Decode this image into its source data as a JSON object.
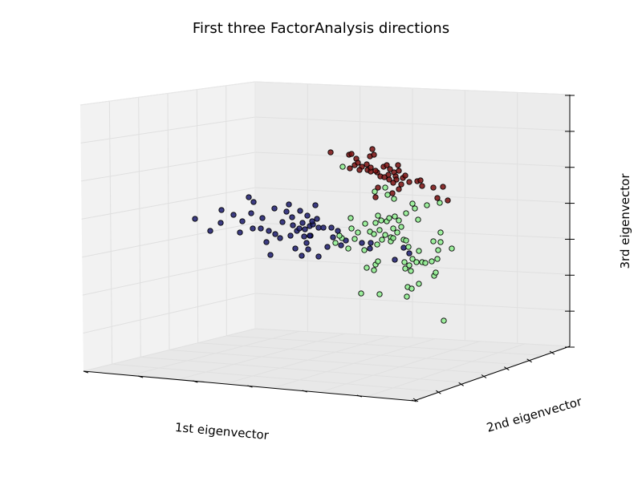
{
  "chart_data": {
    "type": "scatter",
    "projection": "3d",
    "title": "First three FactorAnalysis directions",
    "xlabel": "1st eigenvector",
    "ylabel": "2nd eigenvector",
    "zlabel": "3rd eigenvector",
    "tick_labels_shown": false,
    "grid": true,
    "colors": {
      "cluster_red": "#7a0f0f",
      "cluster_blue": "#1c1c6e",
      "cluster_green": "#8ff08f",
      "pane": "#f2f2f2",
      "grid": "#e4e4e4"
    },
    "series": [
      {
        "color": "#7a0f0f",
        "points": [
          [
            412,
            190
          ],
          [
            435,
            193
          ],
          [
            438,
            192
          ],
          [
            444,
            198
          ],
          [
            442,
            206
          ],
          [
            446,
            203
          ],
          [
            451,
            208
          ],
          [
            448,
            212
          ],
          [
            457,
            205
          ],
          [
            461,
            195
          ],
          [
            464,
            186
          ],
          [
            466,
            193
          ],
          [
            470,
            215
          ],
          [
            458,
            212
          ],
          [
            462,
            214
          ],
          [
            468,
            213
          ],
          [
            474,
            220
          ],
          [
            478,
            208
          ],
          [
            482,
            206
          ],
          [
            486,
            211
          ],
          [
            484,
            218
          ],
          [
            491,
            215
          ],
          [
            493,
            220
          ],
          [
            496,
            206
          ],
          [
            497,
            213
          ],
          [
            494,
            224
          ],
          [
            502,
            222
          ],
          [
            505,
            219
          ],
          [
            510,
            227
          ],
          [
            485,
            224
          ],
          [
            490,
            228
          ],
          [
            500,
            230
          ],
          [
            497,
            236
          ],
          [
            520,
            226
          ],
          [
            524,
            225
          ],
          [
            526,
            232
          ],
          [
            489,
            241
          ],
          [
            471,
            234
          ],
          [
            468,
            246
          ],
          [
            540,
            234
          ],
          [
            552,
            233
          ],
          [
            545,
            247
          ],
          [
            558,
            250
          ],
          [
            436,
            210
          ],
          [
            479,
            221
          ],
          [
            462,
            209
          ]
        ]
      },
      {
        "color": "#1c1c6e",
        "points": [
          [
            243,
            273
          ],
          [
            262,
            288
          ],
          [
            275,
            278
          ],
          [
            276,
            262
          ],
          [
            291,
            268
          ],
          [
            299,
            290
          ],
          [
            302,
            276
          ],
          [
            310,
            246
          ],
          [
            313,
            266
          ],
          [
            316,
            252
          ],
          [
            315,
            285
          ],
          [
            325,
            285
          ],
          [
            327,
            272
          ],
          [
            332,
            302
          ],
          [
            335,
            288
          ],
          [
            343,
            292
          ],
          [
            337,
            318
          ],
          [
            342,
            260
          ],
          [
            349,
            297
          ],
          [
            352,
            277
          ],
          [
            357,
            264
          ],
          [
            360,
            255
          ],
          [
            362,
            294
          ],
          [
            364,
            271
          ],
          [
            365,
            281
          ],
          [
            368,
            310
          ],
          [
            370,
            288
          ],
          [
            373,
            285
          ],
          [
            374,
            263
          ],
          [
            377,
            278
          ],
          [
            376,
            319
          ],
          [
            379,
            295
          ],
          [
            380,
            286
          ],
          [
            383,
            269
          ],
          [
            382,
            303
          ],
          [
            384,
            311
          ],
          [
            386,
            282
          ],
          [
            387,
            294
          ],
          [
            390,
            280
          ],
          [
            393,
            256
          ],
          [
            395,
            273
          ],
          [
            397,
            284
          ],
          [
            397,
            320
          ],
          [
            403,
            284
          ],
          [
            408,
            308
          ],
          [
            413,
            284
          ],
          [
            415,
            296
          ],
          [
            421,
            288
          ],
          [
            425,
            306
          ],
          [
            431,
            300
          ],
          [
            451,
            303
          ],
          [
            461,
            310
          ],
          [
            462,
            303
          ],
          [
            492,
            324
          ],
          [
            503,
            309
          ],
          [
            510,
            316
          ],
          [
            386,
            294
          ],
          [
            389,
            276
          ]
        ]
      },
      {
        "color": "#8ff08f",
        "points": [
          [
            427,
            208
          ],
          [
            467,
            239
          ],
          [
            480,
            234
          ],
          [
            483,
            243
          ],
          [
            491,
            248
          ],
          [
            506,
            266
          ],
          [
            514,
            254
          ],
          [
            517,
            260
          ],
          [
            521,
            274
          ],
          [
            532,
            256
          ],
          [
            548,
            253
          ],
          [
            437,
            272
          ],
          [
            438,
            285
          ],
          [
            442,
            298
          ],
          [
            446,
            290
          ],
          [
            455,
            279
          ],
          [
            461,
            289
          ],
          [
            466,
            292
          ],
          [
            468,
            278
          ],
          [
            471,
            269
          ],
          [
            473,
            287
          ],
          [
            475,
            275
          ],
          [
            476,
            299
          ],
          [
            480,
            293
          ],
          [
            482,
            276
          ],
          [
            485,
            272
          ],
          [
            487,
            296
          ],
          [
            490,
            285
          ],
          [
            492,
            270
          ],
          [
            495,
            290
          ],
          [
            497,
            275
          ],
          [
            500,
            283
          ],
          [
            503,
            299
          ],
          [
            506,
            300
          ],
          [
            509,
            308
          ],
          [
            504,
            327
          ],
          [
            505,
            335
          ],
          [
            510,
            331
          ],
          [
            512,
            338
          ],
          [
            514,
            323
          ],
          [
            519,
            327
          ],
          [
            522,
            313
          ],
          [
            526,
            327
          ],
          [
            530,
            328
          ],
          [
            538,
            326
          ],
          [
            540,
            301
          ],
          [
            545,
            323
          ],
          [
            546,
            312
          ],
          [
            549,
            290
          ],
          [
            563,
            310
          ],
          [
            541,
            344
          ],
          [
            543,
            340
          ],
          [
            522,
            354
          ],
          [
            508,
            358
          ],
          [
            513,
            360
          ],
          [
            507,
            370
          ],
          [
            473,
            367
          ],
          [
            450,
            366
          ],
          [
            454,
            312
          ],
          [
            457,
            334
          ],
          [
            466,
            337
          ],
          [
            468,
            330
          ],
          [
            470,
            305
          ],
          [
            471,
            326
          ],
          [
            487,
            301
          ],
          [
            490,
            297
          ],
          [
            426,
            297
          ],
          [
            434,
            310
          ],
          [
            418,
            303
          ],
          [
            423,
            294
          ],
          [
            553,
            400
          ],
          [
            549,
            302
          ]
        ]
      }
    ]
  }
}
